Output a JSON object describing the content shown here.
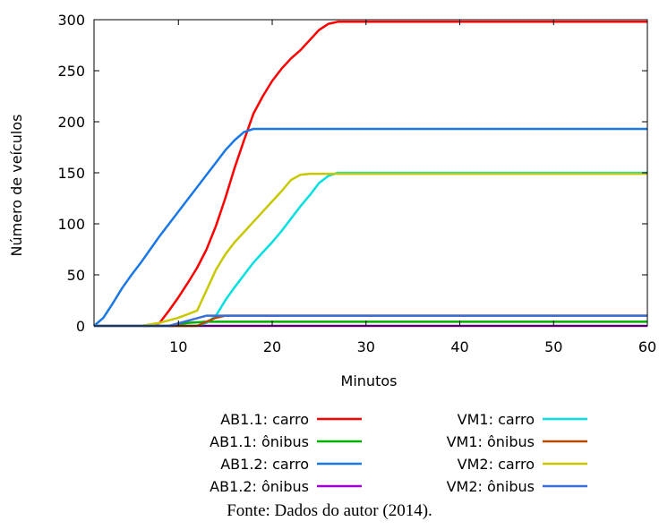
{
  "chart_data": {
    "type": "line",
    "title": "",
    "xlabel": "Minutos",
    "ylabel": "Número de veículos",
    "xlim": [
      1,
      60
    ],
    "ylim": [
      0,
      300
    ],
    "x_ticks": [
      10,
      20,
      30,
      40,
      50,
      60
    ],
    "y_ticks": [
      0,
      50,
      100,
      150,
      200,
      250,
      300
    ],
    "grid": false,
    "legend_position": "bottom",
    "series": [
      {
        "name": "AB1.1: carro",
        "color": "#ff0000",
        "points": [
          [
            1,
            0
          ],
          [
            7,
            0
          ],
          [
            8,
            3
          ],
          [
            9,
            15
          ],
          [
            10,
            28
          ],
          [
            11,
            42
          ],
          [
            12,
            57
          ],
          [
            13,
            75
          ],
          [
            14,
            98
          ],
          [
            15,
            125
          ],
          [
            16,
            155
          ],
          [
            17,
            182
          ],
          [
            18,
            208
          ],
          [
            19,
            225
          ],
          [
            20,
            240
          ],
          [
            21,
            252
          ],
          [
            22,
            262
          ],
          [
            23,
            270
          ],
          [
            24,
            280
          ],
          [
            25,
            290
          ],
          [
            26,
            296
          ],
          [
            27,
            298
          ],
          [
            60,
            298
          ]
        ]
      },
      {
        "name": "AB1.1: ônibus",
        "color": "#00b000",
        "points": [
          [
            1,
            0
          ],
          [
            9,
            0
          ],
          [
            11,
            3
          ],
          [
            13,
            4
          ],
          [
            60,
            4
          ]
        ]
      },
      {
        "name": "AB1.2: carro",
        "color": "#1a78e6",
        "points": [
          [
            1,
            0
          ],
          [
            2,
            8
          ],
          [
            3,
            22
          ],
          [
            4,
            37
          ],
          [
            5,
            50
          ],
          [
            6,
            62
          ],
          [
            7,
            75
          ],
          [
            8,
            88
          ],
          [
            9,
            100
          ],
          [
            10,
            112
          ],
          [
            11,
            124
          ],
          [
            12,
            136
          ],
          [
            13,
            148
          ],
          [
            14,
            160
          ],
          [
            15,
            172
          ],
          [
            16,
            182
          ],
          [
            17,
            190
          ],
          [
            18,
            193
          ],
          [
            60,
            193
          ]
        ]
      },
      {
        "name": "AB1.2: ônibus",
        "color": "#a000d0",
        "points": [
          [
            1,
            0
          ],
          [
            60,
            0
          ]
        ]
      },
      {
        "name": "VM1: carro",
        "color": "#00e0e0",
        "points": [
          [
            1,
            0
          ],
          [
            12,
            0
          ],
          [
            13,
            3
          ],
          [
            14,
            10
          ],
          [
            15,
            25
          ],
          [
            16,
            38
          ],
          [
            17,
            50
          ],
          [
            18,
            62
          ],
          [
            19,
            72
          ],
          [
            20,
            82
          ],
          [
            21,
            93
          ],
          [
            22,
            105
          ],
          [
            23,
            117
          ],
          [
            24,
            128
          ],
          [
            25,
            140
          ],
          [
            26,
            147
          ],
          [
            27,
            150
          ],
          [
            60,
            150
          ]
        ]
      },
      {
        "name": "VM1: ônibus",
        "color": "#b84800",
        "points": [
          [
            1,
            0
          ],
          [
            12,
            0
          ],
          [
            13,
            4
          ],
          [
            14,
            8
          ],
          [
            15,
            10
          ],
          [
            60,
            10
          ]
        ]
      },
      {
        "name": "VM2: carro",
        "color": "#c8c800",
        "points": [
          [
            1,
            0
          ],
          [
            6,
            0
          ],
          [
            8,
            3
          ],
          [
            10,
            8
          ],
          [
            12,
            15
          ],
          [
            13,
            35
          ],
          [
            14,
            55
          ],
          [
            15,
            70
          ],
          [
            16,
            82
          ],
          [
            17,
            92
          ],
          [
            18,
            102
          ],
          [
            19,
            112
          ],
          [
            20,
            122
          ],
          [
            21,
            132
          ],
          [
            22,
            143
          ],
          [
            23,
            148
          ],
          [
            24,
            149
          ],
          [
            60,
            149
          ]
        ]
      },
      {
        "name": "VM2: ônibus",
        "color": "#3a6ed8",
        "points": [
          [
            1,
            0
          ],
          [
            9,
            0
          ],
          [
            11,
            5
          ],
          [
            13,
            10
          ],
          [
            60,
            10
          ]
        ]
      }
    ]
  },
  "caption": "Fonte: Dados do autor (2014)."
}
